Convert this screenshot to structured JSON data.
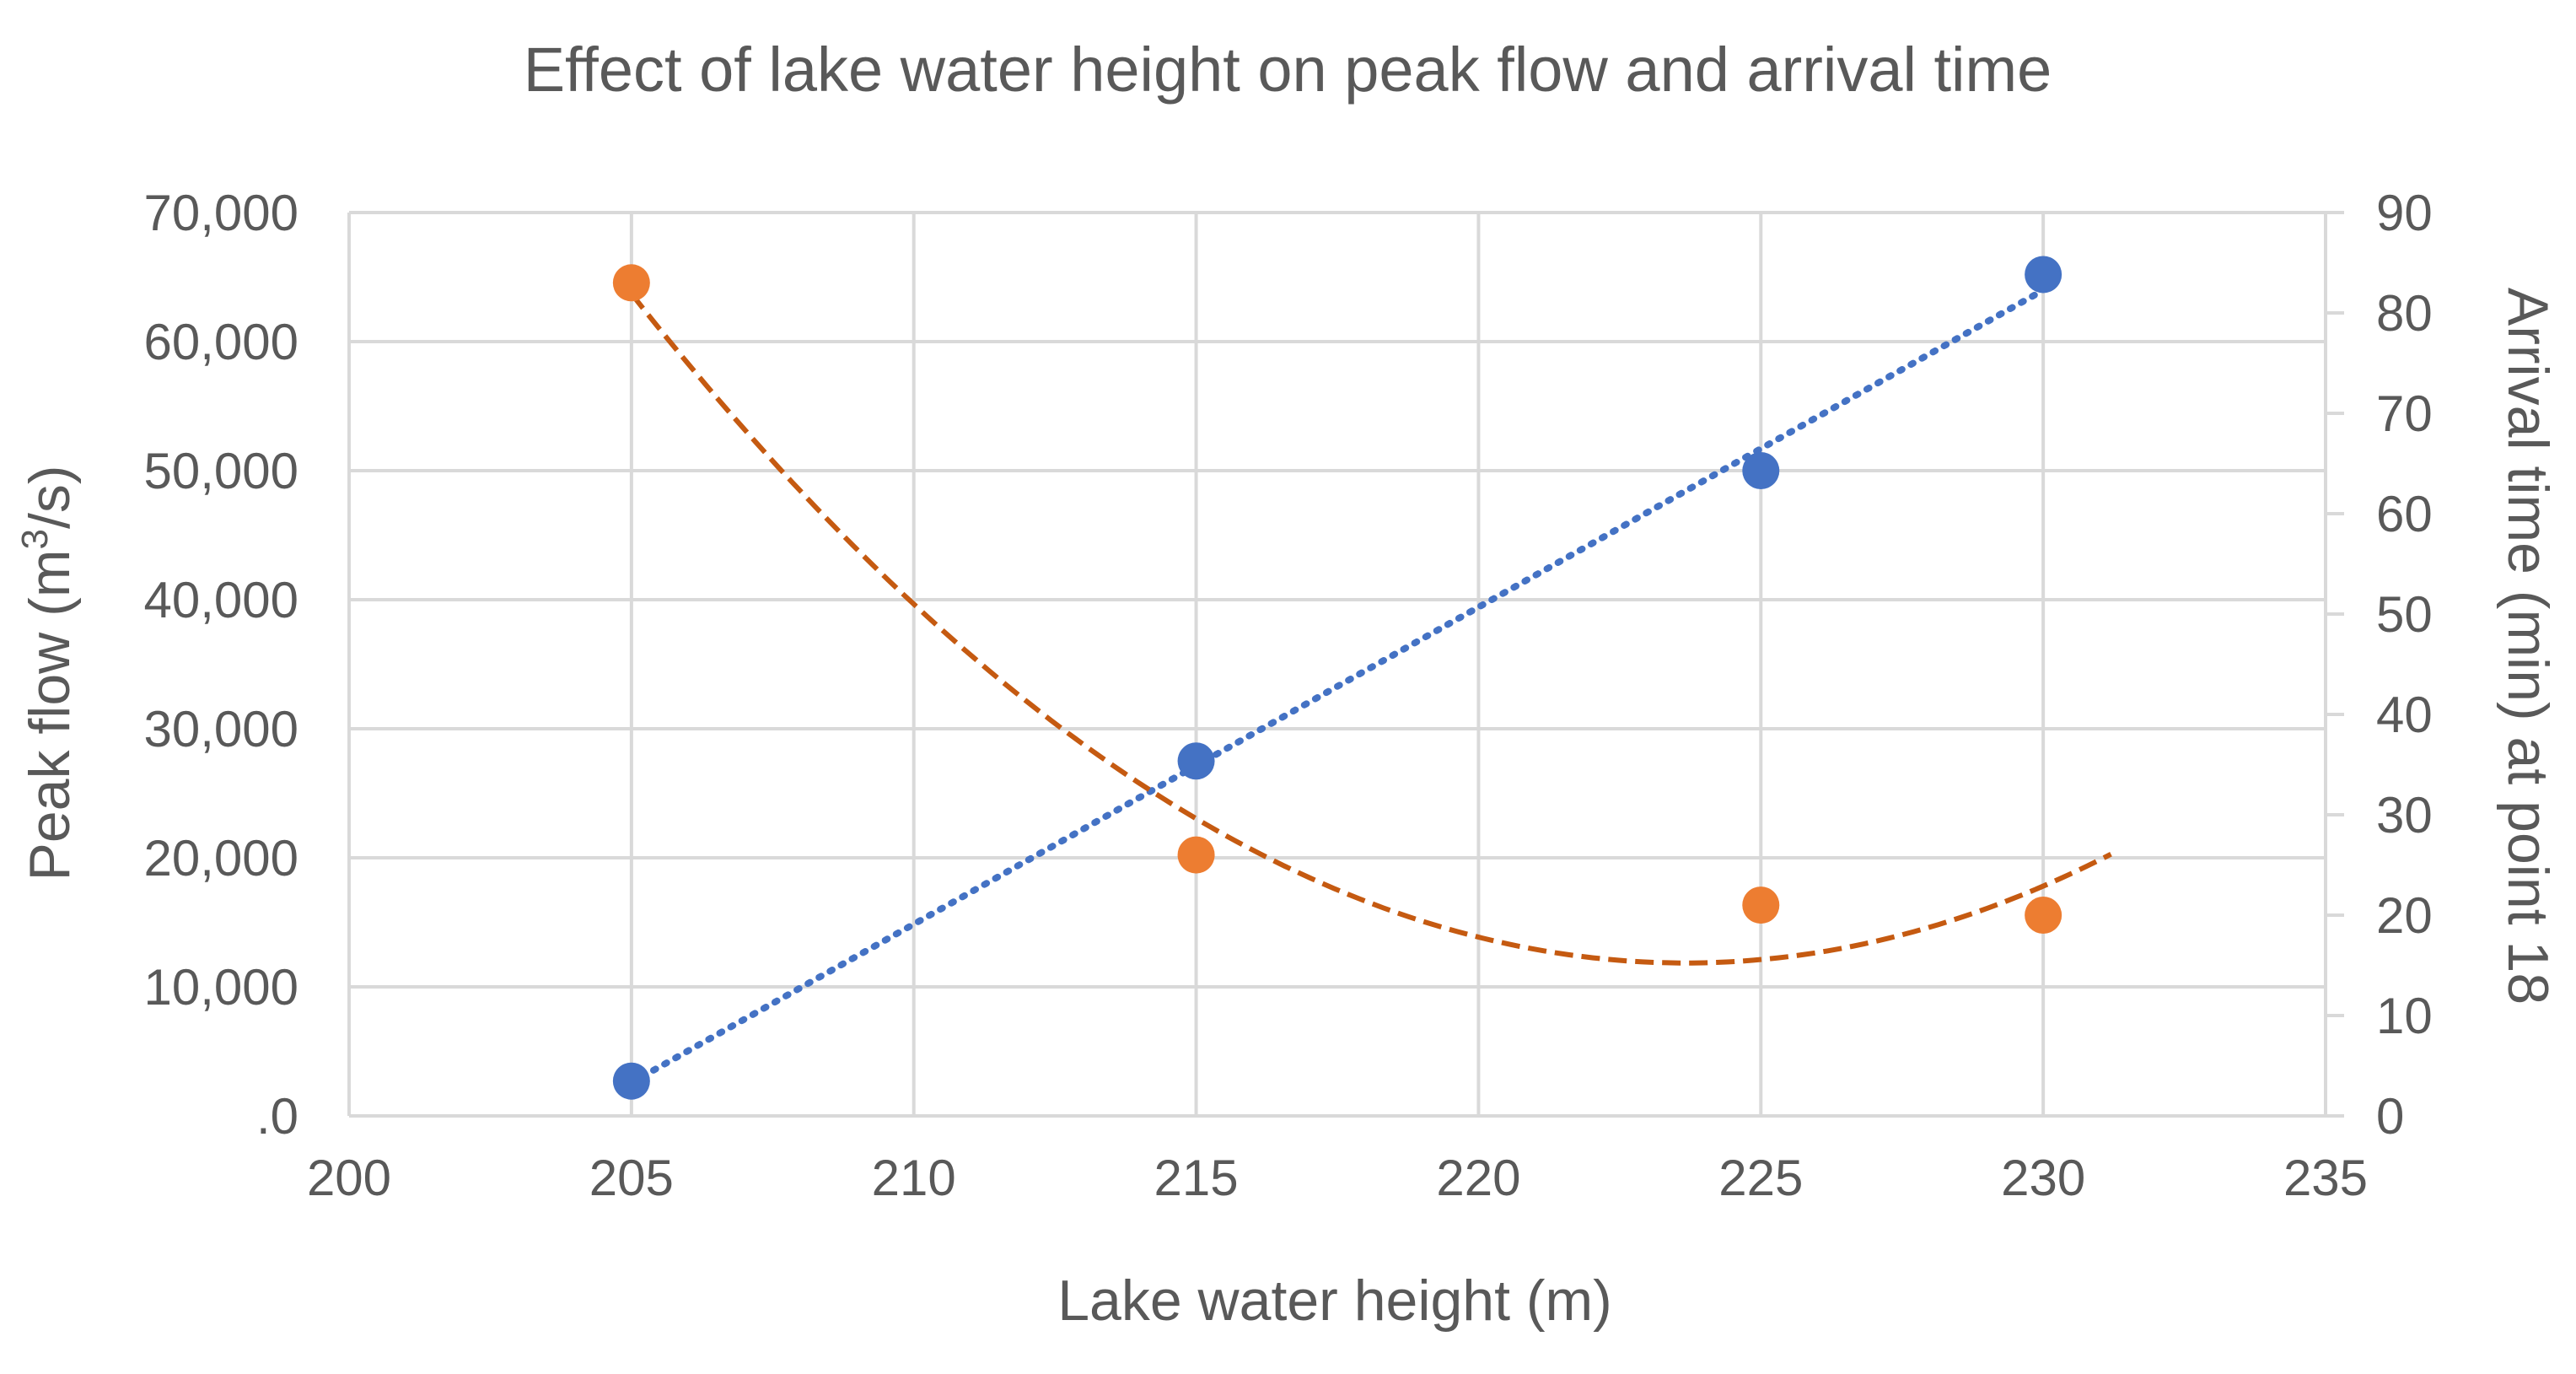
{
  "chart_data": {
    "type": "scatter",
    "title": "Effect of lake water height on peak flow and arrival time",
    "xlabel": "Lake water height (m)",
    "ylabel_left_prefix": "Peak flow (m",
    "ylabel_left_sup": "3",
    "ylabel_left_suffix": "/s)",
    "ylabel_right": "Arrival time (min) at point 18",
    "xlim": [
      200,
      235
    ],
    "ylim_left": [
      0,
      70000
    ],
    "ylim_right": [
      0,
      90
    ],
    "x_ticks": [
      200,
      205,
      210,
      215,
      220,
      225,
      230,
      235
    ],
    "x_tick_labels": [
      "200",
      "205",
      "210",
      "215",
      "220",
      "225",
      "230",
      "235"
    ],
    "y_left_ticks": [
      0,
      10000,
      20000,
      30000,
      40000,
      50000,
      60000,
      70000
    ],
    "y_left_tick_labels": [
      ".0",
      "10,000",
      "20,000",
      "30,000",
      "40,000",
      "50,000",
      "60,000",
      "70,000"
    ],
    "y_right_ticks": [
      0,
      10,
      20,
      30,
      40,
      50,
      60,
      70,
      80,
      90
    ],
    "y_right_tick_labels": [
      "0",
      "10",
      "20",
      "30",
      "40",
      "50",
      "60",
      "70",
      "80",
      "90"
    ],
    "grid": true,
    "series": [
      {
        "name": "Peak flow",
        "axis": "left",
        "color": "#4472C4",
        "trendline": "linear",
        "trendline_style": "dotted",
        "x": [
          205,
          215,
          225,
          230
        ],
        "y": [
          2700,
          27500,
          50000,
          65200
        ]
      },
      {
        "name": "Arrival time",
        "axis": "right",
        "color": "#ED7D31",
        "trendline": "polynomial",
        "trendline_color": "#C55A11",
        "trendline_style": "dashed",
        "trendline_x_range": [
          205,
          231.2
        ],
        "x": [
          205,
          215,
          225,
          230
        ],
        "y": [
          83,
          26,
          21,
          20
        ]
      }
    ]
  }
}
